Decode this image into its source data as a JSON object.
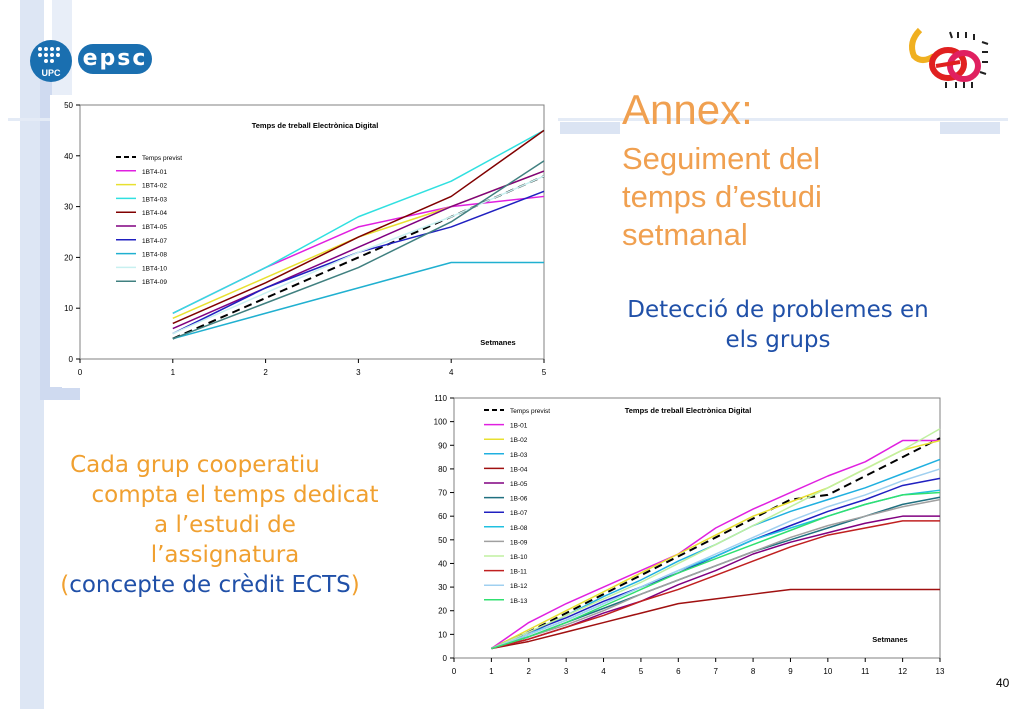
{
  "slide": {
    "title": "Annex:",
    "subtitle_lines": [
      "Seguiment del",
      "temps d’estudi",
      "setmanal"
    ],
    "detection_lines": [
      "Detecció de problemes en",
      "els grups"
    ],
    "left_text_lines": [
      "Cada grup cooperatiu",
      "compta el temps dedicat",
      "a l’estudi de",
      "l’assignatura"
    ],
    "left_text_last": {
      "open": "(",
      "text": "concepte de crèdit ECTS",
      "close": ")"
    },
    "page_number": "40",
    "logos": {
      "upc": "UPC",
      "epsc": "epsc"
    },
    "colors": {
      "title": "#f0a050",
      "blue_text": "#2050a8",
      "orange_text": "#f0a030"
    }
  },
  "chart_data": [
    {
      "type": "line",
      "title": "Temps de treball Electrònica Digital",
      "xlabel": "Setmanes",
      "ylabel": "",
      "x": [
        1,
        2,
        3,
        4,
        5
      ],
      "xticks": [
        "0",
        "1",
        "2",
        "3",
        "4",
        "5"
      ],
      "yticks": [
        "0",
        "10",
        "20",
        "30",
        "40",
        "50"
      ],
      "xlim": [
        0,
        5
      ],
      "ylim": [
        0,
        50
      ],
      "legend_position": "top-left",
      "series": [
        {
          "name": "Temps previst",
          "color": "#000000",
          "dashed": true,
          "values": [
            4,
            12,
            20,
            28,
            36
          ]
        },
        {
          "name": "1BT4-01",
          "color": "#e020e0",
          "values": [
            9,
            18,
            26,
            30,
            32
          ]
        },
        {
          "name": "1BT4-02",
          "color": "#e8e030",
          "values": [
            8,
            16,
            24,
            30,
            37
          ]
        },
        {
          "name": "1BT4-03",
          "color": "#30e0e0",
          "values": [
            9,
            18,
            28,
            35,
            45
          ]
        },
        {
          "name": "1BT4-04",
          "color": "#800000",
          "values": [
            7,
            15,
            24,
            32,
            45
          ]
        },
        {
          "name": "1BT4-05",
          "color": "#800080",
          "values": [
            6,
            14,
            22,
            30,
            37
          ]
        },
        {
          "name": "1BT4-07",
          "color": "#2020c0",
          "values": [
            5,
            14,
            21,
            26,
            33
          ]
        },
        {
          "name": "1BT4-08",
          "color": "#20b0d0",
          "values": [
            4,
            9,
            14,
            19,
            19
          ]
        },
        {
          "name": "1BT4-10",
          "color": "#c8f0f0",
          "values": [
            5,
            13,
            21,
            28,
            36
          ]
        },
        {
          "name": "1BT4-09",
          "color": "#408080",
          "values": [
            4,
            11,
            18,
            27,
            39
          ]
        }
      ]
    },
    {
      "type": "line",
      "title": "Temps de treball Electrònica Digital",
      "xlabel": "Setmanes",
      "ylabel": "",
      "x": [
        1,
        2,
        3,
        4,
        5,
        6,
        7,
        8,
        9,
        10,
        11,
        12,
        13
      ],
      "xticks": [
        "0",
        "1",
        "2",
        "3",
        "4",
        "5",
        "6",
        "7",
        "8",
        "9",
        "10",
        "11",
        "12",
        "13"
      ],
      "yticks": [
        "0",
        "10",
        "20",
        "30",
        "40",
        "50",
        "60",
        "70",
        "80",
        "90",
        "100",
        "110"
      ],
      "xlim": [
        0,
        13
      ],
      "ylim": [
        0,
        110
      ],
      "legend_position": "top-left",
      "series": [
        {
          "name": "Temps previst",
          "color": "#000000",
          "dashed": true,
          "values": [
            4,
            11,
            19,
            27,
            35,
            43,
            51,
            59,
            67,
            69,
            77,
            85,
            93
          ]
        },
        {
          "name": "1B-01",
          "color": "#e020e0",
          "values": [
            4,
            15,
            23,
            30,
            37,
            44,
            55,
            63,
            70,
            77,
            83,
            92,
            92
          ]
        },
        {
          "name": "1B-02",
          "color": "#e8e030",
          "values": [
            4,
            12,
            20,
            28,
            36,
            44,
            52,
            60,
            66,
            72,
            80,
            88,
            92
          ]
        },
        {
          "name": "1B-03",
          "color": "#20b0e0",
          "values": [
            4,
            10,
            18,
            26,
            33,
            41,
            48,
            56,
            62,
            67,
            72,
            78,
            84
          ]
        },
        {
          "name": "1B-04",
          "color": "#a01010",
          "values": [
            4,
            7,
            11,
            15,
            19,
            23,
            25,
            27,
            29,
            29,
            29,
            29,
            29
          ]
        },
        {
          "name": "1B-05",
          "color": "#800080",
          "values": [
            4,
            8,
            13,
            19,
            24,
            31,
            37,
            44,
            49,
            53,
            57,
            60,
            60
          ]
        },
        {
          "name": "1B-06",
          "color": "#207080",
          "values": [
            4,
            9,
            15,
            21,
            27,
            33,
            39,
            45,
            50,
            55,
            60,
            65,
            68
          ]
        },
        {
          "name": "1B-07",
          "color": "#2020c0",
          "values": [
            4,
            11,
            17,
            24,
            30,
            36,
            43,
            50,
            56,
            62,
            67,
            73,
            76
          ]
        },
        {
          "name": "1B-08",
          "color": "#20c0e0",
          "values": [
            4,
            10,
            16,
            23,
            30,
            37,
            43,
            50,
            55,
            60,
            65,
            69,
            71
          ]
        },
        {
          "name": "1B-09",
          "color": "#a0a0a0",
          "values": [
            4,
            9,
            14,
            20,
            27,
            33,
            39,
            45,
            51,
            56,
            60,
            64,
            67
          ]
        },
        {
          "name": "1B-10",
          "color": "#c0f0a0",
          "values": [
            4,
            11,
            18,
            25,
            32,
            40,
            48,
            56,
            64,
            72,
            80,
            88,
            97
          ]
        },
        {
          "name": "1B-11",
          "color": "#c02020",
          "values": [
            4,
            8,
            13,
            18,
            24,
            29,
            35,
            41,
            47,
            52,
            55,
            58,
            58
          ]
        },
        {
          "name": "1B-12",
          "color": "#a0d0f0",
          "values": [
            4,
            10,
            16,
            23,
            30,
            37,
            44,
            51,
            58,
            64,
            69,
            75,
            80
          ]
        },
        {
          "name": "1B-13",
          "color": "#30e070",
          "values": [
            4,
            9,
            15,
            22,
            29,
            36,
            42,
            48,
            54,
            60,
            65,
            69,
            70
          ]
        }
      ]
    }
  ]
}
